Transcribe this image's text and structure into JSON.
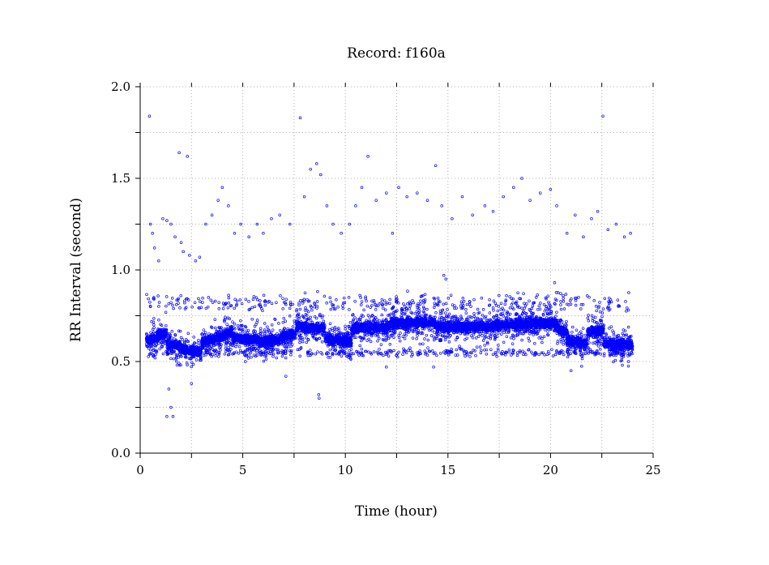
{
  "chart_data": {
    "type": "scatter",
    "title": "Record:  f160a",
    "xlabel": "Time (hour)",
    "ylabel": "RR Interval (second)",
    "xlim": [
      0,
      25
    ],
    "ylim": [
      0,
      2
    ],
    "x_ticks": [
      "0",
      "5",
      "10",
      "15",
      "20",
      "25"
    ],
    "y_ticks": [
      "0.0",
      "0.5",
      "1.0",
      "1.5",
      "2.0"
    ],
    "grid": true,
    "marker_color": "#0000ff",
    "segments": [
      {
        "x": [
          0.3,
          0.8
        ],
        "y": [
          0.62,
          0.62
        ]
      },
      {
        "x": [
          0.8,
          1.3
        ],
        "y": [
          0.64,
          0.65
        ]
      },
      {
        "x": [
          1.3,
          2.0
        ],
        "y": [
          0.6,
          0.58
        ]
      },
      {
        "x": [
          2.0,
          3.0
        ],
        "y": [
          0.57,
          0.55
        ]
      },
      {
        "x": [
          3.0,
          4.5
        ],
        "y": [
          0.6,
          0.66
        ]
      },
      {
        "x": [
          4.5,
          5.8
        ],
        "y": [
          0.63,
          0.62
        ]
      },
      {
        "x": [
          5.8,
          6.8
        ],
        "y": [
          0.6,
          0.62
        ]
      },
      {
        "x": [
          6.8,
          7.6
        ],
        "y": [
          0.63,
          0.65
        ]
      },
      {
        "x": [
          7.6,
          9.0
        ],
        "y": [
          0.69,
          0.68
        ]
      },
      {
        "x": [
          9.0,
          10.3
        ],
        "y": [
          0.62,
          0.61
        ]
      },
      {
        "x": [
          10.3,
          12.2
        ],
        "y": [
          0.68,
          0.69
        ]
      },
      {
        "x": [
          12.2,
          14.4
        ],
        "y": [
          0.71,
          0.71
        ]
      },
      {
        "x": [
          14.4,
          17.3
        ],
        "y": [
          0.69,
          0.69
        ]
      },
      {
        "x": [
          17.3,
          20.3
        ],
        "y": [
          0.7,
          0.71
        ]
      },
      {
        "x": [
          20.3,
          20.8
        ],
        "y": [
          0.68,
          0.66
        ]
      },
      {
        "x": [
          20.8,
          21.8
        ],
        "y": [
          0.61,
          0.6
        ]
      },
      {
        "x": [
          21.8,
          22.6
        ],
        "y": [
          0.66,
          0.67
        ]
      },
      {
        "x": [
          22.6,
          24.0
        ],
        "y": [
          0.6,
          0.59
        ]
      }
    ],
    "outliers": [
      [
        0.45,
        1.84
      ],
      [
        0.5,
        1.25
      ],
      [
        0.6,
        1.2
      ],
      [
        0.7,
        1.12
      ],
      [
        0.9,
        1.05
      ],
      [
        1.1,
        1.28
      ],
      [
        1.3,
        1.27
      ],
      [
        1.5,
        1.25
      ],
      [
        1.7,
        1.18
      ],
      [
        1.9,
        1.64
      ],
      [
        2.0,
        1.15
      ],
      [
        2.1,
        1.1
      ],
      [
        2.3,
        1.62
      ],
      [
        2.4,
        1.08
      ],
      [
        2.7,
        1.05
      ],
      [
        2.9,
        1.07
      ],
      [
        3.2,
        1.25
      ],
      [
        3.5,
        1.3
      ],
      [
        3.8,
        1.38
      ],
      [
        4.0,
        1.45
      ],
      [
        4.3,
        1.35
      ],
      [
        4.6,
        1.2
      ],
      [
        4.9,
        1.25
      ],
      [
        5.3,
        1.18
      ],
      [
        5.7,
        1.25
      ],
      [
        6.0,
        1.2
      ],
      [
        6.4,
        1.28
      ],
      [
        6.8,
        1.3
      ],
      [
        7.3,
        1.25
      ],
      [
        7.8,
        1.83
      ],
      [
        8.0,
        1.4
      ],
      [
        8.3,
        1.55
      ],
      [
        8.6,
        1.58
      ],
      [
        8.8,
        1.52
      ],
      [
        9.1,
        1.35
      ],
      [
        9.4,
        1.25
      ],
      [
        9.8,
        1.2
      ],
      [
        10.2,
        1.25
      ],
      [
        10.5,
        1.35
      ],
      [
        10.8,
        1.45
      ],
      [
        11.1,
        1.62
      ],
      [
        11.5,
        1.38
      ],
      [
        12.0,
        1.42
      ],
      [
        12.3,
        1.2
      ],
      [
        12.6,
        1.45
      ],
      [
        13.0,
        1.4
      ],
      [
        13.5,
        1.42
      ],
      [
        14.0,
        1.38
      ],
      [
        14.4,
        1.57
      ],
      [
        14.7,
        1.35
      ],
      [
        15.2,
        1.28
      ],
      [
        15.7,
        1.4
      ],
      [
        16.2,
        1.3
      ],
      [
        16.8,
        1.35
      ],
      [
        17.2,
        1.32
      ],
      [
        17.7,
        1.4
      ],
      [
        18.2,
        1.45
      ],
      [
        18.6,
        1.5
      ],
      [
        19.0,
        1.38
      ],
      [
        19.5,
        1.42
      ],
      [
        20.0,
        1.44
      ],
      [
        20.3,
        1.35
      ],
      [
        20.8,
        1.2
      ],
      [
        21.2,
        1.3
      ],
      [
        21.6,
        1.18
      ],
      [
        22.0,
        1.28
      ],
      [
        22.3,
        1.32
      ],
      [
        22.55,
        1.84
      ],
      [
        22.8,
        1.22
      ],
      [
        23.2,
        1.25
      ],
      [
        23.6,
        1.18
      ],
      [
        23.9,
        1.2
      ],
      [
        1.3,
        0.2
      ],
      [
        1.5,
        0.25
      ],
      [
        1.6,
        0.2
      ],
      [
        1.4,
        0.35
      ],
      [
        8.7,
        0.32
      ],
      [
        8.72,
        0.3
      ],
      [
        7.1,
        0.42
      ],
      [
        2.5,
        0.38
      ],
      [
        12.0,
        0.47
      ],
      [
        14.3,
        0.47
      ],
      [
        21.0,
        0.45
      ],
      [
        23.5,
        0.48
      ],
      [
        23.8,
        0.5
      ],
      [
        14.8,
        0.97
      ],
      [
        14.9,
        0.95
      ],
      [
        20.2,
        0.93
      ]
    ]
  }
}
